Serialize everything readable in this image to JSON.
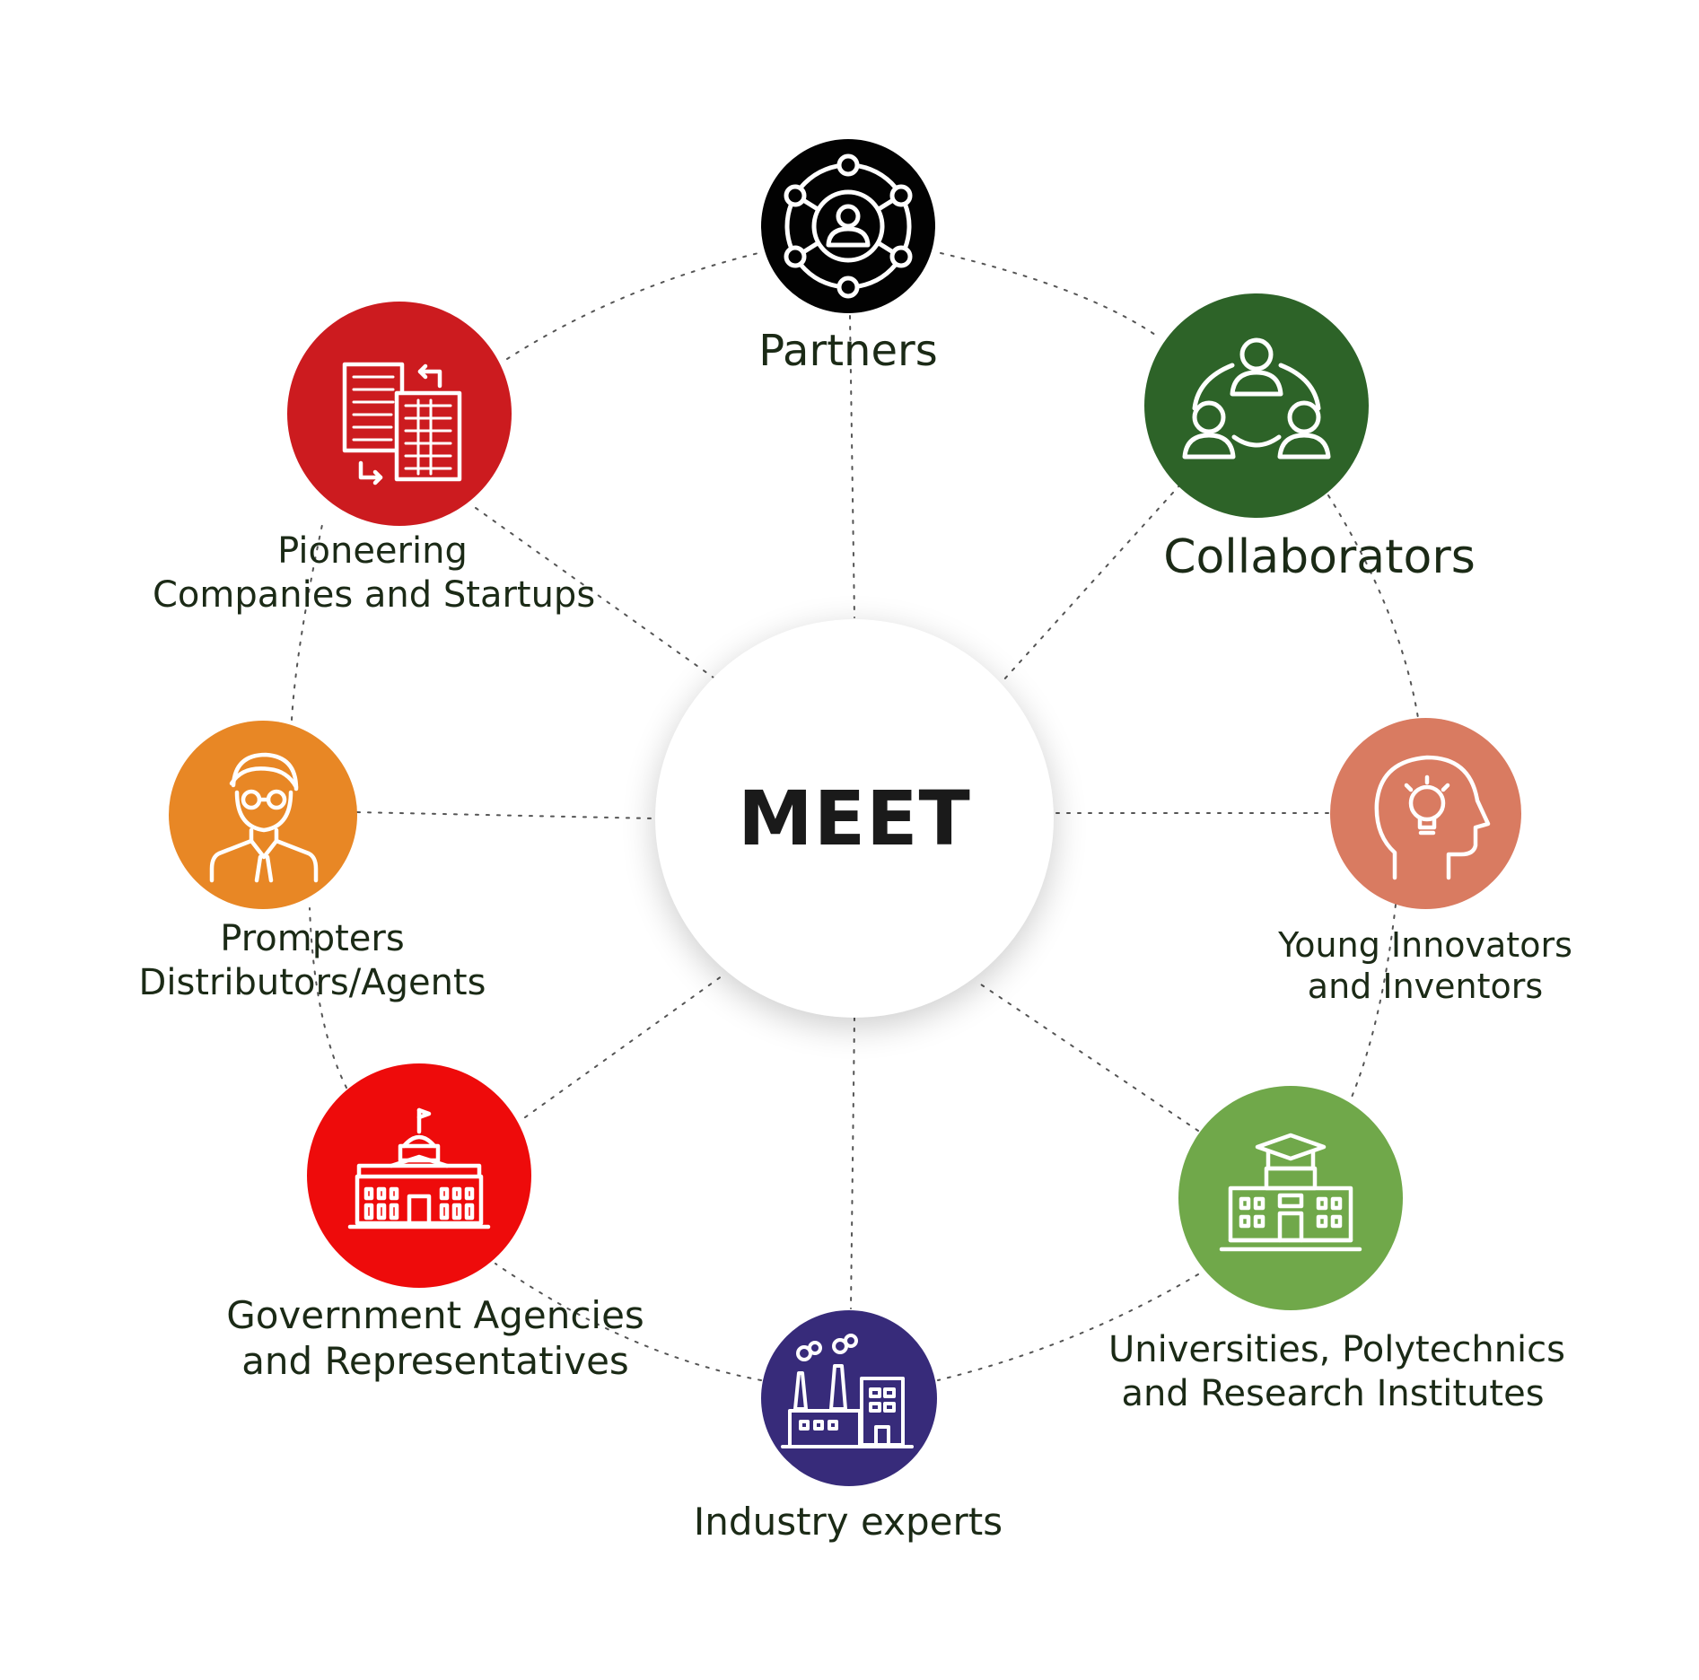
{
  "center": {
    "label": "MEET"
  },
  "colors": {
    "partners": "#020202",
    "collaborators": "#2d6328",
    "young_innovators": "#d97b61",
    "universities": "#70a84a",
    "industry": "#372b7a",
    "government": "#ee0b0b",
    "prompters": "#e88725",
    "pioneering": "#cc1b1f",
    "connector": "#555555",
    "label_text": "#1b2a16"
  },
  "nodes": [
    {
      "id": "partners",
      "icon": "network-people-icon",
      "label_lines": [
        "Partners"
      ]
    },
    {
      "id": "collaborators",
      "icon": "collaboration-people-icon",
      "label_lines": [
        "Collaborators"
      ]
    },
    {
      "id": "young_innovators",
      "icon": "head-lightbulb-icon",
      "label_lines": [
        "Young Innovators",
        "and Inventors"
      ]
    },
    {
      "id": "universities",
      "icon": "university-building-icon",
      "label_lines": [
        "Universities, Polytechnics",
        "and Research Institutes"
      ]
    },
    {
      "id": "industry",
      "icon": "factory-icon",
      "label_lines": [
        "Industry experts"
      ]
    },
    {
      "id": "government",
      "icon": "government-building-icon",
      "label_lines": [
        "Government Agencies",
        "and Representatives"
      ]
    },
    {
      "id": "prompters",
      "icon": "agent-person-icon",
      "label_lines": [
        "Prompters",
        "Distributors/Agents"
      ]
    },
    {
      "id": "pioneering",
      "icon": "office-buildings-icon",
      "label_lines": [
        "Pioneering",
        "Companies and Startups"
      ]
    }
  ]
}
